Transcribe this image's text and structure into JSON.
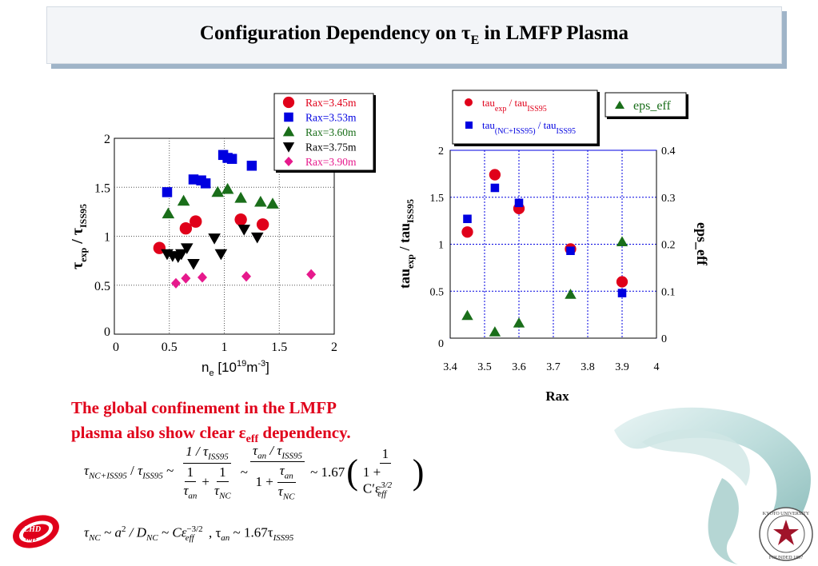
{
  "title": {
    "prefix": "Configuration Dependency on ",
    "tau": "τ",
    "sub": "E",
    "suffix": " in LMFP Plasma"
  },
  "caption": {
    "line1": "The global confinement in the LMFP",
    "line2_pre": "plasma also show clear ",
    "epsilon": "ε",
    "eps_sub": "eff",
    "line2_post": " dependency."
  },
  "equations": {
    "eq1": {
      "lhs": "τ",
      "lhs_sub": "NC+ISS95",
      "slash": " / ",
      "lhs2": "τ",
      "lhs2_sub": "ISS95",
      "tilde": " ~ ",
      "f1_num": "1 / τ",
      "f1_num_sub": "ISS95",
      "f1_den_a": "1",
      "f1_den_a_den": "τ",
      "f1_den_a_sub": "an",
      "plus": "+",
      "f1_den_b": "1",
      "f1_den_b_den": "τ",
      "f1_den_b_sub": "NC",
      "f2_num": "τ",
      "f2_num_sub": "an",
      "f2_num_mid": " / τ",
      "f2_num_sub2": "ISS95",
      "f2_den_one": "1 +",
      "f2_den_num": "τ",
      "f2_den_num_sub": "an",
      "f2_den_den": "τ",
      "f2_den_den_sub": "NC",
      "coef": "~ 1.67",
      "f3_num": "1",
      "f3_den": "1 + C′ε",
      "f3_den_sub": "eff",
      "f3_den_sup": "3/2"
    },
    "eq2": {
      "t1": "τ",
      "t1_sub": "NC",
      "rest1": " ~ a",
      "sup1": "2",
      "rest2": " / D",
      "sub2": "NC",
      "rest3": " ~ Cε",
      "sub3": "eff",
      "sup3": "−3/2",
      "rest4": " ,   τ",
      "sub4": "an",
      "rest5": " ~ 1.67τ",
      "sub5": "ISS95"
    }
  },
  "colors": {
    "red": "#e0001a",
    "blue": "#0000e0",
    "green": "#1a6e1a",
    "black": "#000000",
    "magenta": "#e6198c"
  },
  "chart_data": [
    {
      "type": "scatter",
      "title": "",
      "xlabel": "n_e [10^19 m^-3]",
      "xlabel_parts": {
        "n": "n",
        "n_sub": "e",
        "open": " [10",
        "sup1": "19",
        "m": "m",
        "sup2": "-3",
        "close": "]"
      },
      "ylabel": "τ_exp / τ_ISS95",
      "ylabel_parts": {
        "t1": "τ",
        "s1": "exp",
        "slash": " / ",
        "t2": "τ",
        "s2": "ISS95"
      },
      "xlim": [
        0,
        2
      ],
      "ylim": [
        0,
        2
      ],
      "xticks": [
        "0",
        "0.5",
        "1",
        "1.5",
        "2"
      ],
      "yticks": [
        "0",
        "0.5",
        "1",
        "1.5",
        "2"
      ],
      "grid": true,
      "legend_position": "top-right",
      "series": [
        {
          "name": "Rax=3.45m",
          "marker": "circle",
          "color": "#e0001a",
          "x": [
            0.41,
            0.65,
            0.74,
            1.15,
            1.35
          ],
          "y": [
            0.88,
            1.08,
            1.15,
            1.17,
            1.12
          ]
        },
        {
          "name": "Rax=3.53m",
          "marker": "square",
          "color": "#0000e0",
          "x": [
            0.48,
            0.72,
            0.79,
            0.83,
            0.99,
            1.03,
            1.07,
            1.25
          ],
          "y": [
            1.45,
            1.58,
            1.57,
            1.54,
            1.83,
            1.8,
            1.79,
            1.72
          ]
        },
        {
          "name": "Rax=3.60m",
          "marker": "triangle-up",
          "color": "#1a6e1a",
          "x": [
            0.49,
            0.63,
            0.94,
            1.03,
            1.15,
            1.33,
            1.44
          ],
          "y": [
            1.23,
            1.36,
            1.45,
            1.48,
            1.39,
            1.35,
            1.33
          ]
        },
        {
          "name": "Rax=3.75m",
          "marker": "triangle-down",
          "color": "#000000",
          "x": [
            0.48,
            0.53,
            0.58,
            0.61,
            0.66,
            0.72,
            0.91,
            0.97,
            1.18,
            1.3
          ],
          "y": [
            0.82,
            0.8,
            0.79,
            0.82,
            0.88,
            0.72,
            0.98,
            0.82,
            1.07,
            0.99
          ]
        },
        {
          "name": "Rax=3.90m",
          "marker": "diamond",
          "color": "#e6198c",
          "x": [
            0.56,
            0.65,
            0.8,
            1.2,
            1.79
          ],
          "y": [
            0.52,
            0.57,
            0.58,
            0.59,
            0.61
          ]
        }
      ]
    },
    {
      "type": "scatter",
      "title": "",
      "xlabel": "Rax",
      "ylabel": "tau_exp / tau_ISS95",
      "ylabel_parts": {
        "a": "tau",
        "s1": "exp",
        "b": " / tau",
        "s2": "ISS95"
      },
      "y2label": "eps_eff",
      "xlim": [
        3.4,
        4.0
      ],
      "ylim": [
        0,
        2
      ],
      "y2lim": [
        0,
        0.4
      ],
      "xticks": [
        "3.4",
        "3.5",
        "3.6",
        "3.7",
        "3.8",
        "3.9",
        "4"
      ],
      "yticks": [
        "0",
        "0.5",
        "1",
        "1.5",
        "2"
      ],
      "y2ticks": [
        "0",
        "0.1",
        "0.2",
        "0.3",
        "0.4"
      ],
      "grid": true,
      "legend_position": "top",
      "legend": {
        "l1": {
          "a": "tau",
          "s1": "exp",
          "b": " / tau",
          "s2": "ISS95"
        },
        "l2": {
          "a": "tau",
          "s1": "(NC+ISS95)",
          "b": " / tau",
          "s2": "ISS95"
        },
        "l3": "eps_eff"
      },
      "series": [
        {
          "name": "tau_exp / tau_ISS95",
          "axis": "left",
          "marker": "circle",
          "color": "#e0001a",
          "x": [
            3.45,
            3.53,
            3.6,
            3.75,
            3.9
          ],
          "y": [
            1.13,
            1.74,
            1.38,
            0.95,
            0.6
          ]
        },
        {
          "name": "tau_(NC+ISS95) / tau_ISS95",
          "axis": "left",
          "marker": "square",
          "color": "#0000e0",
          "x": [
            3.45,
            3.53,
            3.6,
            3.75,
            3.9
          ],
          "y": [
            1.27,
            1.6,
            1.44,
            0.93,
            0.48
          ]
        },
        {
          "name": "eps_eff",
          "axis": "right",
          "marker": "triangle-up",
          "color": "#1a6e1a",
          "x": [
            3.45,
            3.53,
            3.6,
            3.75,
            3.9
          ],
          "y": [
            0.048,
            0.013,
            0.032,
            0.093,
            0.205
          ]
        }
      ]
    }
  ]
}
